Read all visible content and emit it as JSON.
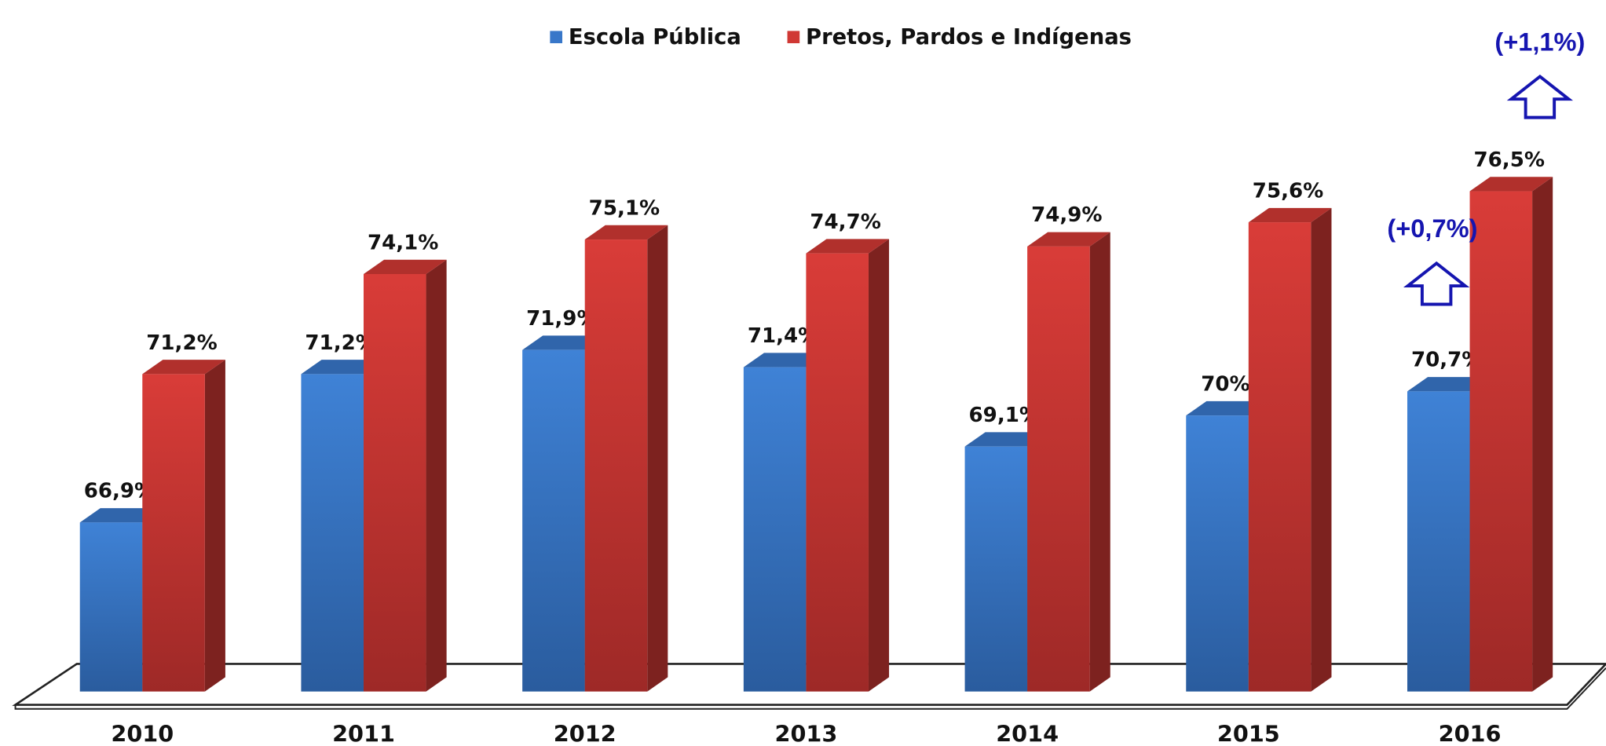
{
  "chart_data": {
    "type": "bar3d",
    "categories": [
      "2010",
      "2011",
      "2012",
      "2013",
      "2014",
      "2015",
      "2016"
    ],
    "series": [
      {
        "name": "Escola Pública",
        "color": "#3877c9",
        "values": [
          66.9,
          71.2,
          71.9,
          71.4,
          69.1,
          70,
          70.7
        ],
        "value_labels": [
          "66,9%",
          "71,2%",
          "71,9%",
          "71,4%",
          "69,1%",
          "70%",
          "70,7%"
        ]
      },
      {
        "name": "Pretos, Pardos e Indígenas",
        "color": "#d03834",
        "values": [
          71.2,
          74.1,
          75.1,
          74.7,
          74.9,
          75.6,
          76.5
        ],
        "value_labels": [
          "71,2%",
          "74,1%",
          "75,1%",
          "74,7%",
          "74,9%",
          "75,6%",
          "76,5%"
        ]
      }
    ],
    "annotations": [
      "(+0,7%)",
      "(+1,1%)"
    ],
    "ylim": [
      62,
      78
    ]
  }
}
